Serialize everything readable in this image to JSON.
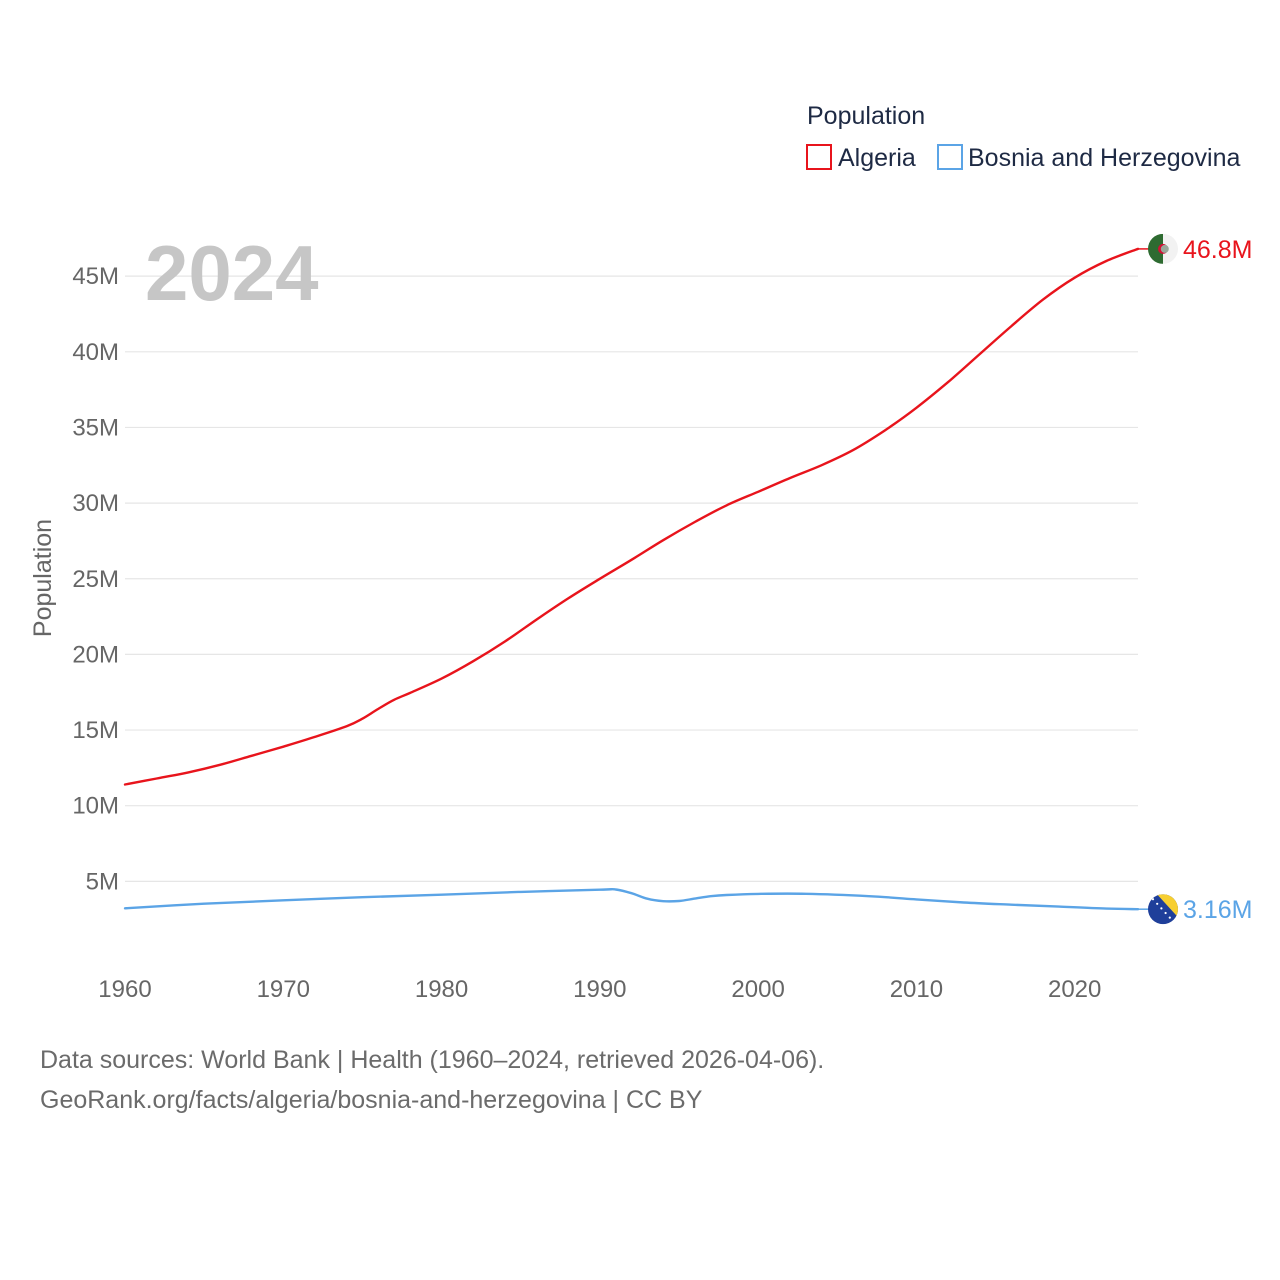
{
  "chart_data": {
    "type": "line",
    "year_label": "2024",
    "legend": {
      "title": "Population",
      "placement": "top-right"
    },
    "ylabel": "Population",
    "xlabel": "",
    "xlim": [
      1960,
      2024
    ],
    "ylim": [
      0,
      48000000
    ],
    "x_ticks": [
      {
        "value": 1960,
        "label": "1960"
      },
      {
        "value": 1970,
        "label": "1970"
      },
      {
        "value": 1980,
        "label": "1980"
      },
      {
        "value": 1990,
        "label": "1990"
      },
      {
        "value": 2000,
        "label": "2000"
      },
      {
        "value": 2010,
        "label": "2010"
      },
      {
        "value": 2020,
        "label": "2020"
      }
    ],
    "y_ticks": [
      {
        "value": 5000000,
        "label": "5M"
      },
      {
        "value": 10000000,
        "label": "10M"
      },
      {
        "value": 15000000,
        "label": "15M"
      },
      {
        "value": 20000000,
        "label": "20M"
      },
      {
        "value": 25000000,
        "label": "25M"
      },
      {
        "value": 30000000,
        "label": "30M"
      },
      {
        "value": 35000000,
        "label": "35M"
      },
      {
        "value": 40000000,
        "label": "40M"
      },
      {
        "value": 45000000,
        "label": "45M"
      }
    ],
    "series": [
      {
        "name": "Algeria",
        "color": "#e8141c",
        "end_label": "46.8M",
        "flag": "algeria-flag-icon",
        "points": [
          [
            1960,
            11400000
          ],
          [
            1962,
            11800000
          ],
          [
            1964,
            12200000
          ],
          [
            1966,
            12700000
          ],
          [
            1968,
            13300000
          ],
          [
            1970,
            13900000
          ],
          [
            1972,
            14550000
          ],
          [
            1974,
            15250000
          ],
          [
            1975,
            15750000
          ],
          [
            1976,
            16400000
          ],
          [
            1977,
            17000000
          ],
          [
            1978,
            17450000
          ],
          [
            1980,
            18400000
          ],
          [
            1982,
            19550000
          ],
          [
            1984,
            20850000
          ],
          [
            1986,
            22300000
          ],
          [
            1988,
            23700000
          ],
          [
            1990,
            25000000
          ],
          [
            1992,
            26250000
          ],
          [
            1994,
            27550000
          ],
          [
            1996,
            28750000
          ],
          [
            1998,
            29850000
          ],
          [
            2000,
            30750000
          ],
          [
            2002,
            31650000
          ],
          [
            2004,
            32500000
          ],
          [
            2006,
            33500000
          ],
          [
            2008,
            34800000
          ],
          [
            2010,
            36300000
          ],
          [
            2012,
            38000000
          ],
          [
            2014,
            39850000
          ],
          [
            2016,
            41700000
          ],
          [
            2018,
            43450000
          ],
          [
            2020,
            44900000
          ],
          [
            2022,
            46000000
          ],
          [
            2024,
            46800000
          ]
        ]
      },
      {
        "name": "Bosnia and Herzegovina",
        "color": "#5ba4e6",
        "end_label": "3.16M",
        "flag": "bosnia-flag-icon",
        "points": [
          [
            1960,
            3220000
          ],
          [
            1965,
            3520000
          ],
          [
            1970,
            3750000
          ],
          [
            1975,
            3950000
          ],
          [
            1980,
            4120000
          ],
          [
            1985,
            4300000
          ],
          [
            1990,
            4450000
          ],
          [
            1991,
            4460000
          ],
          [
            1992,
            4220000
          ],
          [
            1993,
            3850000
          ],
          [
            1994,
            3690000
          ],
          [
            1995,
            3700000
          ],
          [
            1996,
            3860000
          ],
          [
            1997,
            4020000
          ],
          [
            1998,
            4100000
          ],
          [
            2000,
            4170000
          ],
          [
            2003,
            4180000
          ],
          [
            2007,
            4020000
          ],
          [
            2010,
            3810000
          ],
          [
            2013,
            3600000
          ],
          [
            2016,
            3460000
          ],
          [
            2019,
            3330000
          ],
          [
            2022,
            3200000
          ],
          [
            2024,
            3160000
          ]
        ]
      }
    ]
  },
  "footer": {
    "line1": "Data sources: World Bank | Health (1960–2024, retrieved 2026-04-06).",
    "line2": "GeoRank.org/facts/algeria/bosnia-and-herzegovina | CC BY"
  }
}
